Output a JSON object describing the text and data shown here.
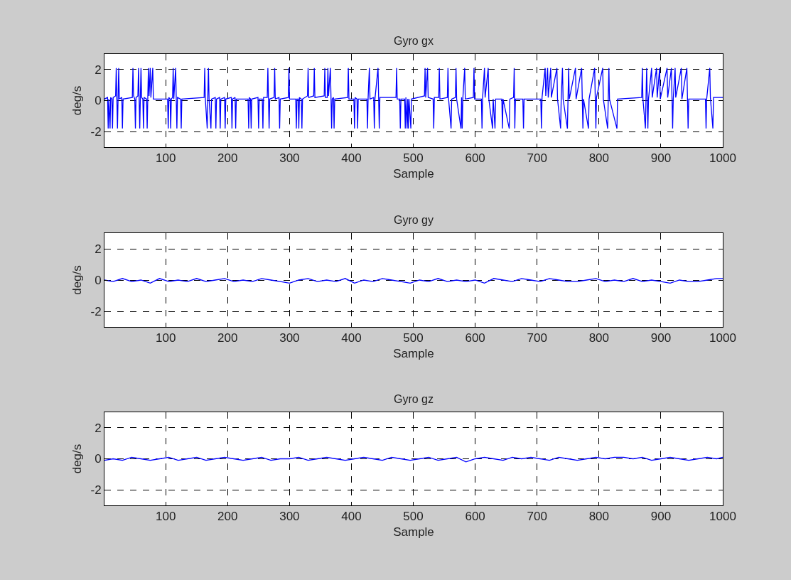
{
  "chart_data": [
    {
      "type": "line",
      "title": "Gyro gx",
      "xlabel": "Sample",
      "ylabel": "deg/s",
      "xlim": [
        1,
        1000
      ],
      "xticks": [
        100,
        200,
        300,
        400,
        500,
        600,
        700,
        800,
        900,
        1000
      ],
      "ylim": [
        -3,
        3
      ],
      "yticks": [
        -2,
        0,
        2
      ],
      "grid": true,
      "line_style": "solid",
      "marker": "none",
      "series": [
        {
          "color": "#0000ff",
          "x": [
            1,
            6,
            7,
            8,
            10,
            11,
            13,
            14,
            15,
            19,
            20,
            21,
            22,
            23,
            24,
            25,
            29,
            30,
            31,
            46,
            47,
            48,
            50,
            51,
            52,
            55,
            56,
            57,
            58,
            59,
            60,
            61,
            63,
            64,
            65,
            69,
            70,
            71,
            72,
            73,
            75,
            76,
            79,
            80,
            103,
            104,
            105,
            107,
            108,
            109,
            111,
            112,
            113,
            116,
            117,
            118,
            119,
            124,
            125,
            126,
            162,
            163,
            164,
            167,
            168,
            169,
            170,
            173,
            174,
            180,
            181,
            182,
            187,
            188,
            189,
            195,
            196,
            197,
            206,
            207,
            208,
            212,
            213,
            214,
            233,
            234,
            235,
            237,
            238,
            239,
            249,
            250,
            251,
            256,
            257,
            258,
            264,
            265,
            266,
            267,
            268,
            275,
            276,
            277,
            283,
            284,
            285,
            298,
            299,
            300,
            310,
            311,
            312,
            314,
            315,
            316,
            319,
            320,
            321,
            329,
            330,
            331,
            339,
            340,
            341,
            356,
            357,
            358,
            361,
            362,
            363,
            366,
            367,
            368,
            369,
            371,
            372,
            373,
            394,
            395,
            396,
            404,
            405,
            406,
            409,
            410,
            411,
            425,
            426,
            427,
            429,
            430,
            436,
            437,
            438,
            443,
            444,
            445,
            446,
            472,
            473,
            474,
            478,
            479,
            480,
            486,
            487,
            488,
            490,
            491,
            492,
            493,
            496,
            497,
            518,
            519,
            520,
            523,
            524,
            532,
            533,
            534,
            541,
            542,
            543,
            555,
            556,
            557,
            561,
            562,
            568,
            569,
            570,
            577,
            578,
            579,
            580,
            583,
            584,
            597,
            598,
            599,
            610,
            611,
            612,
            615,
            616,
            621,
            622,
            628,
            629,
            632,
            633,
            643,
            644,
            645,
            655,
            656,
            662,
            663,
            664,
            665,
            677,
            678,
            679,
            706,
            707,
            708,
            713,
            714,
            717,
            718,
            722,
            723,
            732,
            733,
            738,
            739,
            741,
            742,
            749,
            750,
            751,
            752,
            762,
            763,
            772,
            773,
            774,
            775,
            783,
            784,
            793,
            794,
            795,
            796,
            806,
            807,
            814,
            815,
            816,
            817,
            829,
            830,
            869,
            870,
            871,
            875,
            876,
            877,
            878,
            879,
            880,
            885,
            886,
            893,
            894,
            898,
            899,
            910,
            911,
            917,
            918,
            919,
            920,
            923,
            924,
            933,
            934,
            942,
            943,
            944,
            945,
            972,
            973,
            974,
            979,
            980,
            984,
            985,
            1000
          ],
          "values": [
            0.1,
            0.2,
            -1.8,
            0.1,
            -1.8,
            0.2,
            0.1,
            -1.8,
            0.2,
            0.3,
            2.1,
            0.1,
            -1.8,
            0.2,
            2.1,
            0.1,
            0.2,
            -1.8,
            0.1,
            0.2,
            2.1,
            0.3,
            0.1,
            -1.8,
            0.2,
            0.3,
            2.1,
            0.1,
            -1.8,
            0.2,
            2.1,
            0.2,
            0.1,
            -1.8,
            0.2,
            0.1,
            -1.8,
            0.2,
            2.1,
            0.3,
            2.1,
            0.2,
            2.1,
            0.1,
            0.1,
            -1.8,
            0.2,
            0.1,
            -1.8,
            0.1,
            0.2,
            2.1,
            0.1,
            2.1,
            0.1,
            -1.8,
            0.2,
            0.1,
            -1.8,
            0.1,
            0.2,
            2.1,
            0.1,
            -1.8,
            0.3,
            2.1,
            0.1,
            -1.8,
            0.1,
            0.2,
            -1.8,
            0.1,
            0.2,
            -1.8,
            0.1,
            0.2,
            -1.8,
            0.1,
            0.2,
            -1.8,
            0.1,
            0.2,
            -1.8,
            0.1,
            0.1,
            -1.8,
            0.2,
            0.1,
            -1.8,
            0.1,
            0.2,
            -1.8,
            0.1,
            0.1,
            -1.8,
            0.2,
            0.2,
            2.1,
            0.1,
            -1.8,
            0.1,
            0.2,
            2.1,
            0.1,
            0.2,
            -1.8,
            0.1,
            0.2,
            2.1,
            0.1,
            0.1,
            -1.8,
            0.1,
            0.1,
            -1.8,
            0.2,
            0.1,
            -1.8,
            0.1,
            0.3,
            2.1,
            0.2,
            0.3,
            2.1,
            0.2,
            0.3,
            2.1,
            0.2,
            0.2,
            2.1,
            0.3,
            2.1,
            0.2,
            -1.8,
            0.1,
            0.2,
            -1.8,
            0.1,
            0.2,
            2.1,
            0.1,
            0.1,
            -1.8,
            0.2,
            0.1,
            -1.8,
            0.1,
            0.1,
            -1.8,
            0.2,
            2.1,
            0.1,
            0.2,
            -1.8,
            0.1,
            2.1,
            0.1,
            -1.8,
            0.2,
            0.2,
            2.1,
            0.1,
            0.1,
            -1.8,
            0.1,
            0.1,
            -1.8,
            0.2,
            -1.8,
            0.1,
            -1.8,
            0.1,
            -1.8,
            0.1,
            0.3,
            2.1,
            0.2,
            2.1,
            0.2,
            0.1,
            -1.8,
            0.2,
            0.2,
            2.1,
            0.1,
            0.2,
            2.1,
            0.1,
            -1.8,
            0.1,
            0.2,
            2.1,
            0.1,
            -1.8,
            0.2,
            -1.8,
            0.1,
            2.1,
            0.1,
            0.2,
            2.1,
            0.1,
            0.1,
            -1.8,
            0.2,
            2.1,
            0.2,
            2.1,
            0.1,
            -1.8,
            0.1,
            -1.8,
            0.1,
            0.1,
            -1.8,
            0.1,
            -1.8,
            0.1,
            0.2,
            2.1,
            -1.8,
            0.1,
            0.1,
            -1.8,
            0.1,
            0.1,
            -1.8,
            0.2,
            2.1,
            0.3,
            2.1,
            0.2,
            2.1,
            0.2,
            2.1,
            0.1,
            -1.8,
            0.2,
            2.1,
            0.1,
            -1.8,
            0.2,
            2.1,
            0.1,
            2.1,
            0.1,
            2.1,
            0.1,
            -1.8,
            0.1,
            -1.8,
            0.1,
            2.1,
            0.1,
            -1.8,
            0.2,
            2.1,
            0.1,
            -1.8,
            0.2,
            2.1,
            0.1,
            -1.8,
            0.1,
            0.2,
            2.1,
            0.1,
            -1.8,
            0.2,
            2.1,
            0.1,
            -1.8,
            0.1,
            2.1,
            0.2,
            2.1,
            0.2,
            2.1,
            0.1,
            2.1,
            0.2,
            2.1,
            0.1,
            -1.8,
            0.1,
            2.1,
            0.2,
            2.1,
            0.1,
            2.1,
            0.1,
            -1.8,
            0.1,
            0.1,
            -1.8,
            0.1,
            2.1,
            0.2,
            -1.8,
            0.2,
            0.2
          ]
        }
      ]
    },
    {
      "type": "line",
      "title": "Gyro gy",
      "xlabel": "Sample",
      "ylabel": "deg/s",
      "xlim": [
        1,
        1000
      ],
      "xticks": [
        100,
        200,
        300,
        400,
        500,
        600,
        700,
        800,
        900,
        1000
      ],
      "ylim": [
        -3,
        3
      ],
      "yticks": [
        -2,
        0,
        2
      ],
      "grid": true,
      "line_style": "solid",
      "marker": "none",
      "series": [
        {
          "color": "#0000ff",
          "x": [
            1,
            15,
            30,
            45,
            60,
            75,
            90,
            105,
            120,
            135,
            150,
            165,
            180,
            195,
            210,
            225,
            240,
            255,
            270,
            285,
            300,
            315,
            330,
            345,
            360,
            375,
            390,
            405,
            420,
            435,
            450,
            465,
            480,
            495,
            510,
            525,
            540,
            555,
            570,
            585,
            600,
            615,
            630,
            645,
            660,
            675,
            690,
            705,
            720,
            735,
            750,
            765,
            780,
            795,
            810,
            825,
            840,
            855,
            870,
            885,
            900,
            915,
            930,
            945,
            960,
            975,
            990,
            1000
          ],
          "values": [
            0,
            -0.1,
            0.1,
            -0.1,
            0,
            -0.2,
            0.1,
            -0.1,
            0,
            -0.1,
            0.1,
            -0.1,
            0,
            0.1,
            -0.1,
            0,
            -0.1,
            0.1,
            0,
            -0.1,
            -0.2,
            0,
            0.1,
            -0.1,
            0,
            -0.1,
            0.1,
            -0.2,
            0,
            -0.1,
            0.1,
            0,
            -0.1,
            -0.2,
            0,
            -0.1,
            0.1,
            -0.1,
            0,
            -0.1,
            0,
            -0.2,
            0.1,
            0,
            -0.1,
            0.1,
            0,
            -0.1,
            0.1,
            0,
            -0.1,
            -0.1,
            0,
            0.1,
            -0.1,
            0,
            -0.1,
            0.1,
            -0.1,
            0,
            -0.1,
            -0.2,
            0,
            -0.1,
            -0.1,
            0,
            0.1,
            0.1
          ]
        }
      ]
    },
    {
      "type": "line",
      "title": "Gyro gz",
      "xlabel": "Sample",
      "ylabel": "deg/s",
      "xlim": [
        1,
        1000
      ],
      "xticks": [
        100,
        200,
        300,
        400,
        500,
        600,
        700,
        800,
        900,
        1000
      ],
      "ylim": [
        -3,
        3
      ],
      "yticks": [
        -2,
        0,
        2
      ],
      "grid": true,
      "line_style": "solid",
      "marker": "none",
      "series": [
        {
          "color": "#0000ff",
          "x": [
            1,
            15,
            30,
            45,
            60,
            75,
            90,
            105,
            120,
            135,
            150,
            165,
            180,
            195,
            210,
            225,
            240,
            255,
            270,
            285,
            300,
            315,
            330,
            345,
            360,
            375,
            390,
            405,
            420,
            435,
            450,
            465,
            480,
            495,
            510,
            525,
            540,
            555,
            570,
            585,
            600,
            615,
            630,
            645,
            660,
            675,
            690,
            705,
            720,
            735,
            750,
            765,
            780,
            795,
            810,
            825,
            840,
            855,
            870,
            885,
            900,
            915,
            930,
            945,
            960,
            975,
            990,
            1000
          ],
          "values": [
            -0.1,
            0,
            -0.1,
            0.1,
            0,
            -0.1,
            0,
            0.1,
            -0.1,
            0,
            0.1,
            -0.1,
            0,
            0.1,
            0,
            -0.1,
            0,
            0.1,
            -0.1,
            0,
            0,
            0.1,
            -0.1,
            0,
            0.1,
            0,
            -0.1,
            0,
            0.1,
            0,
            -0.1,
            0.1,
            0,
            -0.1,
            0,
            0.1,
            -0.1,
            0,
            0.1,
            -0.2,
            0,
            0.1,
            0,
            -0.1,
            0.1,
            0,
            0.1,
            0,
            -0.1,
            0.1,
            0,
            -0.1,
            0,
            0.1,
            0,
            0.1,
            0.1,
            0,
            0.1,
            -0.1,
            0,
            0.1,
            0,
            -0.1,
            0,
            0.1,
            0,
            0.1
          ]
        }
      ]
    }
  ]
}
